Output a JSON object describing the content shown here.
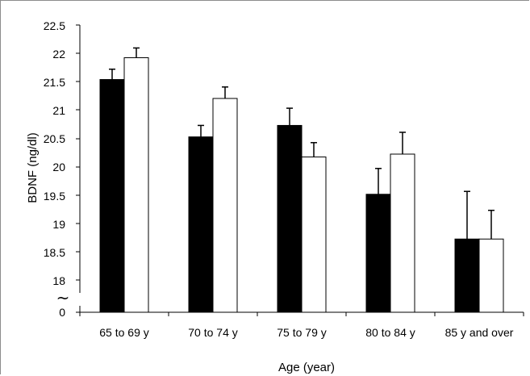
{
  "chart_data": {
    "type": "bar",
    "title": "",
    "xlabel": "Age (year)",
    "ylabel": "BDNF (ng/dl)",
    "categories": [
      "65 to 69 y",
      "70 to 74 y",
      "75 to 79 y",
      "80 to 84 y",
      "85 y and over"
    ],
    "series": [
      {
        "fill": "#000000",
        "values": [
          21.55,
          20.55,
          20.75,
          19.55,
          18.77
        ],
        "errors": [
          0.18,
          0.2,
          0.3,
          0.45,
          0.83
        ]
      },
      {
        "fill": "#ffffff",
        "values": [
          21.93,
          21.22,
          20.2,
          20.25,
          18.77
        ],
        "errors": [
          0.17,
          0.2,
          0.25,
          0.38,
          0.5
        ]
      }
    ],
    "yticks": [
      "22.5",
      "22",
      "21.5",
      "21",
      "20.5",
      "20",
      "19.5",
      "19",
      "18.5",
      "18",
      "0"
    ],
    "axis_break": "~",
    "ylim": [
      17.75,
      22.5
    ],
    "grid": false,
    "legend": "none"
  }
}
